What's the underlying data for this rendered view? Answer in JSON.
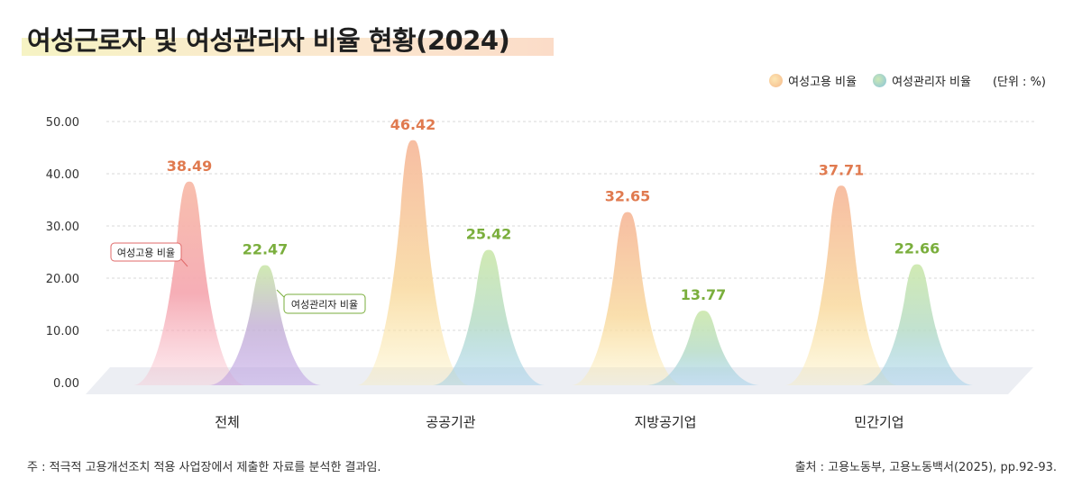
{
  "title": "여성근로자 및 여성관리자 비율 현황(2024)",
  "legend": {
    "employment": "여성고용 비율",
    "manager": "여성관리자 비율",
    "unit": "(단위 : %)"
  },
  "callouts": {
    "employment": "여성고용 비율",
    "manager": "여성관리자 비율"
  },
  "footnote": "주 :  적극적 고용개선조치 적용 사업장에서 제출한 자료를 분석한 결과임.",
  "source": "출처 : 고용노동부, 고용노동백서(2025), pp.92-93.",
  "colors": {
    "employment_label": "#e07a4f",
    "manager_label": "#7aae3c",
    "grid": "#d9d9d9",
    "floor": "#eceef3"
  },
  "chart_data": {
    "type": "area",
    "categories": [
      "전체",
      "공공기관",
      "지방공기업",
      "민간기업"
    ],
    "series": [
      {
        "name": "여성고용 비율",
        "values": [
          38.49,
          46.42,
          32.65,
          37.71
        ]
      },
      {
        "name": "여성관리자 비율",
        "values": [
          22.47,
          25.42,
          13.77,
          22.66
        ]
      }
    ],
    "yticks": [
      "50.00",
      "40.00",
      "30.00",
      "20.00",
      "10.00",
      "0.00"
    ],
    "ylim": [
      0,
      50
    ],
    "grid": true,
    "legend_position": "top-right"
  }
}
